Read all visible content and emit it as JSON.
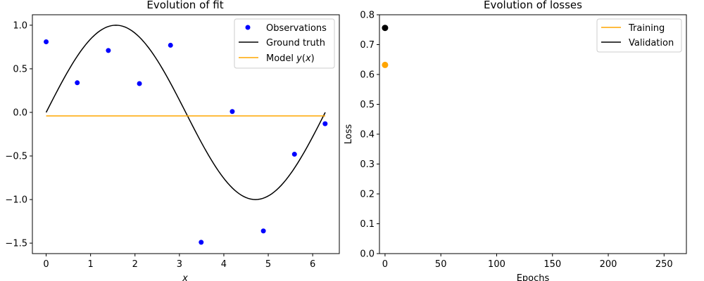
{
  "colors": {
    "observations": "#0000ff",
    "ground_truth": "#000000",
    "model": "#ffa500",
    "training": "#ffa500",
    "validation": "#000000"
  },
  "chart_data": [
    {
      "type": "line",
      "title": "Evolution of fit",
      "xlabel": "x",
      "ylabel": "",
      "xlim": [
        -0.31,
        6.6
      ],
      "ylim": [
        -1.62,
        1.12
      ],
      "xticks": [
        0,
        1,
        2,
        3,
        4,
        5,
        6
      ],
      "xtick_labels": [
        "0",
        "1",
        "2",
        "3",
        "4",
        "5",
        "6"
      ],
      "yticks": [
        -1.5,
        -1.0,
        -0.5,
        0.0,
        0.5,
        1.0
      ],
      "ytick_labels": [
        "−1.5",
        "−1.0",
        "−0.5",
        "0.0",
        "0.5",
        "1.0"
      ],
      "grid": false,
      "legend_position": "top-right",
      "series": [
        {
          "name": "Observations",
          "kind": "scatter",
          "x": [
            0.0,
            0.7,
            1.4,
            2.1,
            2.8,
            3.49,
            4.19,
            4.89,
            5.59,
            6.28
          ],
          "y": [
            0.81,
            0.34,
            0.71,
            0.33,
            0.77,
            -1.49,
            0.01,
            -1.36,
            -0.48,
            -0.13
          ]
        },
        {
          "name": "Ground truth",
          "kind": "line",
          "function": "sin",
          "x_range": [
            0,
            6.283
          ]
        },
        {
          "name": "Model $y(x)$",
          "kind": "line",
          "x": [
            0,
            6.283
          ],
          "y": [
            -0.04,
            -0.04
          ]
        }
      ]
    },
    {
      "type": "scatter",
      "title": "Evolution of losses",
      "xlabel": "Epochs",
      "ylabel": "Loss",
      "xlim": [
        -5,
        270
      ],
      "ylim": [
        0,
        0.8
      ],
      "xticks": [
        0,
        50,
        100,
        150,
        200,
        250
      ],
      "xtick_labels": [
        "0",
        "50",
        "100",
        "150",
        "200",
        "250"
      ],
      "yticks": [
        0.0,
        0.1,
        0.2,
        0.3,
        0.4,
        0.5,
        0.6,
        0.7,
        0.8
      ],
      "ytick_labels": [
        "0.0",
        "0.1",
        "0.2",
        "0.3",
        "0.4",
        "0.5",
        "0.6",
        "0.7",
        "0.8"
      ],
      "grid": false,
      "legend_position": "top-right",
      "series": [
        {
          "name": "Training",
          "x": [
            0
          ],
          "y": [
            0.632
          ]
        },
        {
          "name": "Validation",
          "x": [
            0
          ],
          "y": [
            0.756
          ]
        }
      ]
    }
  ]
}
